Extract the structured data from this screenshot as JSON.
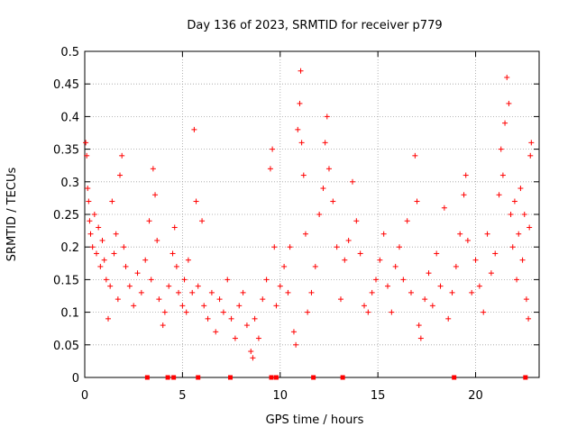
{
  "chart_data": {
    "type": "scatter",
    "title": "Day 136 of 2023, SRMTID for receiver p779",
    "xlabel": "GPS time / hours",
    "ylabel": "SRMTID / TECUs",
    "xlim": [
      0,
      23.25
    ],
    "ylim": [
      0,
      0.5
    ],
    "x_ticks": [
      0,
      5,
      10,
      15,
      20
    ],
    "x_tick_labels": [
      "0",
      "5",
      "10",
      "15",
      "20"
    ],
    "y_ticks": [
      0,
      0.05,
      0.1,
      0.15,
      0.2,
      0.25,
      0.3,
      0.35,
      0.4,
      0.45,
      0.5
    ],
    "y_tick_labels": [
      "0",
      "0.05",
      "0.1",
      "0.15",
      "0.2",
      "0.25",
      "0.3",
      "0.35",
      "0.4",
      "0.45",
      "0.5"
    ],
    "grid": true,
    "marker": "+",
    "color": "#ff0000",
    "series": [
      {
        "name": "SRMTID",
        "points": [
          [
            0.05,
            0.36
          ],
          [
            0.1,
            0.34
          ],
          [
            0.15,
            0.29
          ],
          [
            0.2,
            0.27
          ],
          [
            0.25,
            0.24
          ],
          [
            0.3,
            0.22
          ],
          [
            0.4,
            0.2
          ],
          [
            0.5,
            0.25
          ],
          [
            0.6,
            0.19
          ],
          [
            0.7,
            0.23
          ],
          [
            0.8,
            0.17
          ],
          [
            0.9,
            0.21
          ],
          [
            1.0,
            0.18
          ],
          [
            1.1,
            0.15
          ],
          [
            1.2,
            0.09
          ],
          [
            1.3,
            0.14
          ],
          [
            1.4,
            0.27
          ],
          [
            1.5,
            0.19
          ],
          [
            1.6,
            0.22
          ],
          [
            1.7,
            0.12
          ],
          [
            1.8,
            0.31
          ],
          [
            1.9,
            0.34
          ],
          [
            2.0,
            0.2
          ],
          [
            2.1,
            0.17
          ],
          [
            2.3,
            0.14
          ],
          [
            2.5,
            0.11
          ],
          [
            2.7,
            0.16
          ],
          [
            2.9,
            0.13
          ],
          [
            3.1,
            0.18
          ],
          [
            3.3,
            0.24
          ],
          [
            3.4,
            0.15
          ],
          [
            3.5,
            0.32
          ],
          [
            3.6,
            0.28
          ],
          [
            3.7,
            0.21
          ],
          [
            3.8,
            0.12
          ],
          [
            4.0,
            0.08
          ],
          [
            4.1,
            0.1
          ],
          [
            4.3,
            0.14
          ],
          [
            4.5,
            0.19
          ],
          [
            4.6,
            0.23
          ],
          [
            4.7,
            0.17
          ],
          [
            4.8,
            0.13
          ],
          [
            5.0,
            0.11
          ],
          [
            5.1,
            0.15
          ],
          [
            5.2,
            0.1
          ],
          [
            5.3,
            0.18
          ],
          [
            5.5,
            0.13
          ],
          [
            5.6,
            0.38
          ],
          [
            5.7,
            0.27
          ],
          [
            5.8,
            0.14
          ],
          [
            6.0,
            0.24
          ],
          [
            6.1,
            0.11
          ],
          [
            6.3,
            0.09
          ],
          [
            6.5,
            0.13
          ],
          [
            6.7,
            0.07
          ],
          [
            6.9,
            0.12
          ],
          [
            7.1,
            0.1
          ],
          [
            7.3,
            0.15
          ],
          [
            7.5,
            0.09
          ],
          [
            7.7,
            0.06
          ],
          [
            7.9,
            0.11
          ],
          [
            8.1,
            0.13
          ],
          [
            8.3,
            0.08
          ],
          [
            8.5,
            0.04
          ],
          [
            8.6,
            0.03
          ],
          [
            8.7,
            0.09
          ],
          [
            8.9,
            0.06
          ],
          [
            9.1,
            0.12
          ],
          [
            9.3,
            0.15
          ],
          [
            9.5,
            0.32
          ],
          [
            9.6,
            0.35
          ],
          [
            9.7,
            0.2
          ],
          [
            9.8,
            0.11
          ],
          [
            10.0,
            0.14
          ],
          [
            10.2,
            0.17
          ],
          [
            10.4,
            0.13
          ],
          [
            10.5,
            0.2
          ],
          [
            10.7,
            0.07
          ],
          [
            10.8,
            0.05
          ],
          [
            10.9,
            0.38
          ],
          [
            11.0,
            0.42
          ],
          [
            11.05,
            0.47
          ],
          [
            11.1,
            0.36
          ],
          [
            11.2,
            0.31
          ],
          [
            11.3,
            0.22
          ],
          [
            11.4,
            0.1
          ],
          [
            11.6,
            0.13
          ],
          [
            11.8,
            0.17
          ],
          [
            12.0,
            0.25
          ],
          [
            12.2,
            0.29
          ],
          [
            12.3,
            0.36
          ],
          [
            12.4,
            0.4
          ],
          [
            12.5,
            0.32
          ],
          [
            12.7,
            0.27
          ],
          [
            12.9,
            0.2
          ],
          [
            13.1,
            0.12
          ],
          [
            13.3,
            0.18
          ],
          [
            13.5,
            0.21
          ],
          [
            13.7,
            0.3
          ],
          [
            13.9,
            0.24
          ],
          [
            14.1,
            0.19
          ],
          [
            14.3,
            0.11
          ],
          [
            14.5,
            0.1
          ],
          [
            14.7,
            0.13
          ],
          [
            14.9,
            0.15
          ],
          [
            15.1,
            0.18
          ],
          [
            15.3,
            0.22
          ],
          [
            15.5,
            0.14
          ],
          [
            15.7,
            0.1
          ],
          [
            15.9,
            0.17
          ],
          [
            16.1,
            0.2
          ],
          [
            16.3,
            0.15
          ],
          [
            16.5,
            0.24
          ],
          [
            16.7,
            0.13
          ],
          [
            16.9,
            0.34
          ],
          [
            17.0,
            0.27
          ],
          [
            17.1,
            0.08
          ],
          [
            17.2,
            0.06
          ],
          [
            17.4,
            0.12
          ],
          [
            17.6,
            0.16
          ],
          [
            17.8,
            0.11
          ],
          [
            18.0,
            0.19
          ],
          [
            18.2,
            0.14
          ],
          [
            18.4,
            0.26
          ],
          [
            18.6,
            0.09
          ],
          [
            18.8,
            0.13
          ],
          [
            19.0,
            0.17
          ],
          [
            19.2,
            0.22
          ],
          [
            19.4,
            0.28
          ],
          [
            19.5,
            0.31
          ],
          [
            19.6,
            0.21
          ],
          [
            19.8,
            0.13
          ],
          [
            20.0,
            0.18
          ],
          [
            20.2,
            0.14
          ],
          [
            20.4,
            0.1
          ],
          [
            20.6,
            0.22
          ],
          [
            20.8,
            0.16
          ],
          [
            21.0,
            0.19
          ],
          [
            21.2,
            0.28
          ],
          [
            21.3,
            0.35
          ],
          [
            21.4,
            0.31
          ],
          [
            21.5,
            0.39
          ],
          [
            21.6,
            0.46
          ],
          [
            21.7,
            0.42
          ],
          [
            21.8,
            0.25
          ],
          [
            21.9,
            0.2
          ],
          [
            22.0,
            0.27
          ],
          [
            22.1,
            0.15
          ],
          [
            22.2,
            0.22
          ],
          [
            22.3,
            0.29
          ],
          [
            22.4,
            0.18
          ],
          [
            22.5,
            0.25
          ],
          [
            22.6,
            0.12
          ],
          [
            22.7,
            0.09
          ],
          [
            22.75,
            0.23
          ],
          [
            22.8,
            0.34
          ],
          [
            22.85,
            0.36
          ]
        ]
      }
    ],
    "zero_markers_x": [
      3.2,
      4.25,
      4.55,
      5.8,
      7.45,
      9.55,
      9.8,
      11.7,
      13.2,
      18.9,
      22.55
    ]
  }
}
